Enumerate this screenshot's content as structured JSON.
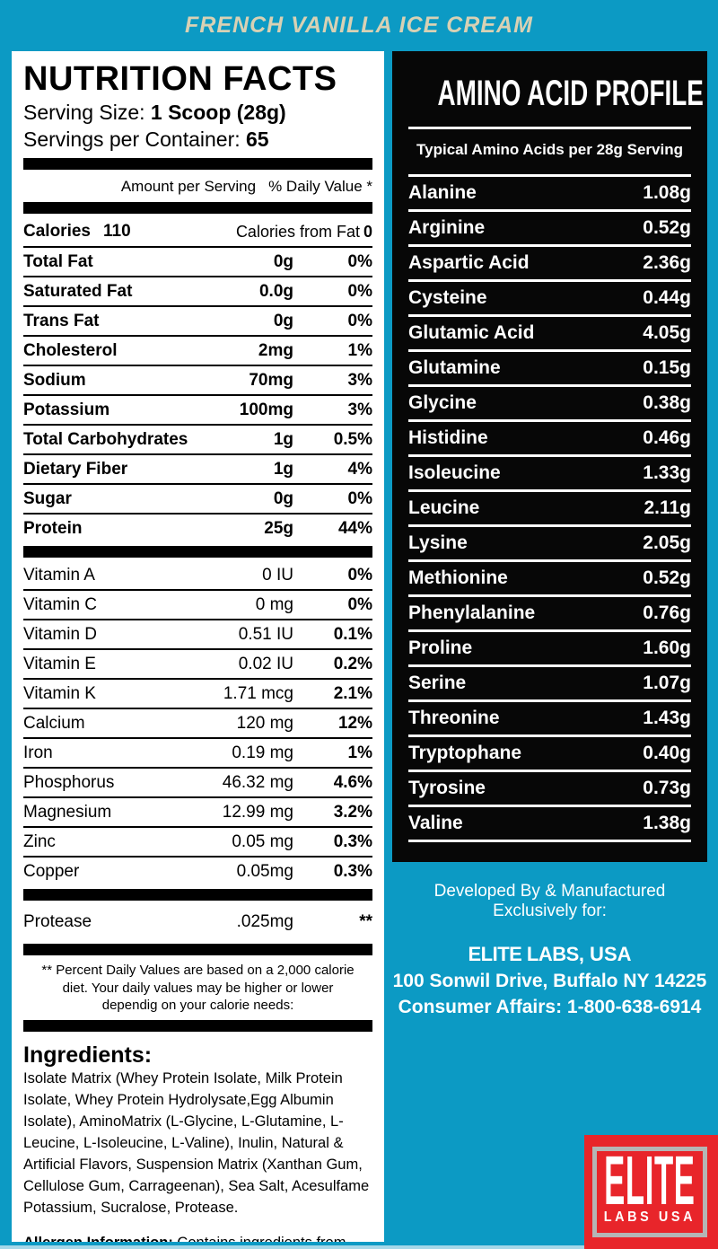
{
  "colors": {
    "teal": "#0c9ac4",
    "banner_text": "#d8d1b4",
    "panel_black": "#070707",
    "logo_red": "#e8252a",
    "logo_frame": "#b5b5b5",
    "light_strip": "#a6d7e8"
  },
  "banner": {
    "title": "FRENCH VANILLA ICE CREAM"
  },
  "nutrition": {
    "title": "NUTRITION FACTS",
    "serving_size_label": "Serving Size:",
    "serving_size_value": "1 Scoop (28g)",
    "servings_label": "Servings per Container:",
    "servings_value": "65",
    "col_amount": "Amount per Serving",
    "col_dv": "% Daily Value *",
    "calories_label": "Calories",
    "calories_value": "110",
    "calories_fat_label": "Calories from Fat",
    "calories_fat_value": "0",
    "main_rows": [
      {
        "name": "Total Fat",
        "amount": "0g",
        "dv": "0%"
      },
      {
        "name": "Saturated Fat",
        "amount": "0.0g",
        "dv": "0%"
      },
      {
        "name": "Trans Fat",
        "amount": "0g",
        "dv": "0%"
      },
      {
        "name": "Cholesterol",
        "amount": "2mg",
        "dv": "1%"
      },
      {
        "name": "Sodium",
        "amount": "70mg",
        "dv": "3%"
      },
      {
        "name": "Potassium",
        "amount": "100mg",
        "dv": "3%"
      },
      {
        "name": "Total Carbohydrates",
        "amount": "1g",
        "dv": "0.5%"
      },
      {
        "name": "Dietary Fiber",
        "amount": "1g",
        "dv": "4%"
      },
      {
        "name": "Sugar",
        "amount": "0g",
        "dv": "0%"
      },
      {
        "name": "Protein",
        "amount": "25g",
        "dv": "44%"
      }
    ],
    "vitamin_rows": [
      {
        "name": "Vitamin A",
        "amount": "0 IU",
        "dv": "0%"
      },
      {
        "name": "Vitamin C",
        "amount": "0 mg",
        "dv": "0%"
      },
      {
        "name": "Vitamin D",
        "amount": "0.51 IU",
        "dv": "0.1%"
      },
      {
        "name": "Vitamin E",
        "amount": "0.02 IU",
        "dv": "0.2%"
      },
      {
        "name": "Vitamin K",
        "amount": "1.71 mcg",
        "dv": "2.1%"
      },
      {
        "name": "Calcium",
        "amount": "120 mg",
        "dv": "12%"
      },
      {
        "name": "Iron",
        "amount": "0.19 mg",
        "dv": "1%"
      },
      {
        "name": "Phosphorus",
        "amount": "46.32 mg",
        "dv": "4.6%"
      },
      {
        "name": "Magnesium",
        "amount": "12.99 mg",
        "dv": "3.2%"
      },
      {
        "name": "Zinc",
        "amount": "0.05 mg",
        "dv": "0.3%"
      },
      {
        "name": "Copper",
        "amount": "0.05mg",
        "dv": "0.3%"
      }
    ],
    "enzyme_rows": [
      {
        "name": "Protease",
        "amount": ".025mg",
        "dv": "**"
      }
    ],
    "footnote_lines": [
      "** Percent Daily Values are based on a 2,000 calorie",
      "diet. Your daily values may be higher or lower",
      "dependig on your calorie needs:"
    ],
    "ingredients_title": "Ingredients:",
    "ingredients_text": "Isolate Matrix (Whey Protein Isolate, Milk Protein Isolate, Whey Protein Hydrolysate,Egg Albumin Isolate), AminoMatrix (L-Glycine, L-Glutamine, L-Leucine, L-Isoleucine, L-Valine), Inulin, Natural & Artificial Flavors, Suspension Matrix (Xanthan Gum, Cellulose Gum, Carrageenan), Sea Salt, Acesulfame Potassium, Sucralose, Protease.",
    "allergen_label": "Allergen Information:",
    "allergen_text": " Contains ingredients from milk, egg, and soy. Manufactured in a plant that also processes wheat, egg, soy, fish, and tree nuts."
  },
  "amino": {
    "title": "AMINO ACID PROFILE",
    "subtitle": "Typical Amino Acids per 28g Serving",
    "rows": [
      {
        "name": "Alanine",
        "value": "1.08g"
      },
      {
        "name": "Arginine",
        "value": "0.52g"
      },
      {
        "name": "Aspartic Acid",
        "value": "2.36g"
      },
      {
        "name": "Cysteine",
        "value": "0.44g"
      },
      {
        "name": "Glutamic Acid",
        "value": "4.05g"
      },
      {
        "name": "Glutamine",
        "value": "0.15g"
      },
      {
        "name": "Glycine",
        "value": "0.38g"
      },
      {
        "name": "Histidine",
        "value": "0.46g"
      },
      {
        "name": "Isoleucine",
        "value": "1.33g"
      },
      {
        "name": "Leucine",
        "value": "2.11g"
      },
      {
        "name": "Lysine",
        "value": "2.05g"
      },
      {
        "name": "Methionine",
        "value": "0.52g"
      },
      {
        "name": "Phenylalanine",
        "value": "0.76g"
      },
      {
        "name": "Proline",
        "value": "1.60g"
      },
      {
        "name": "Serine",
        "value": "1.07g"
      },
      {
        "name": "Threonine",
        "value": "1.43g"
      },
      {
        "name": "Tryptophane",
        "value": "0.40g"
      },
      {
        "name": "Tyrosine",
        "value": "0.73g"
      },
      {
        "name": "Valine",
        "value": "1.38g"
      }
    ]
  },
  "footer": {
    "developed": "Developed By & Manufactured Exclusively for:",
    "company_bold": "ELITE LABS",
    "company_rest": ", USA",
    "address": "100 Sonwil Drive, Buffalo NY 14225",
    "consumer_label": "Consumer Affairs: ",
    "consumer_number": "1-800-638-6914"
  },
  "logo": {
    "line1": "ELITE",
    "line2": "LABS USA"
  }
}
